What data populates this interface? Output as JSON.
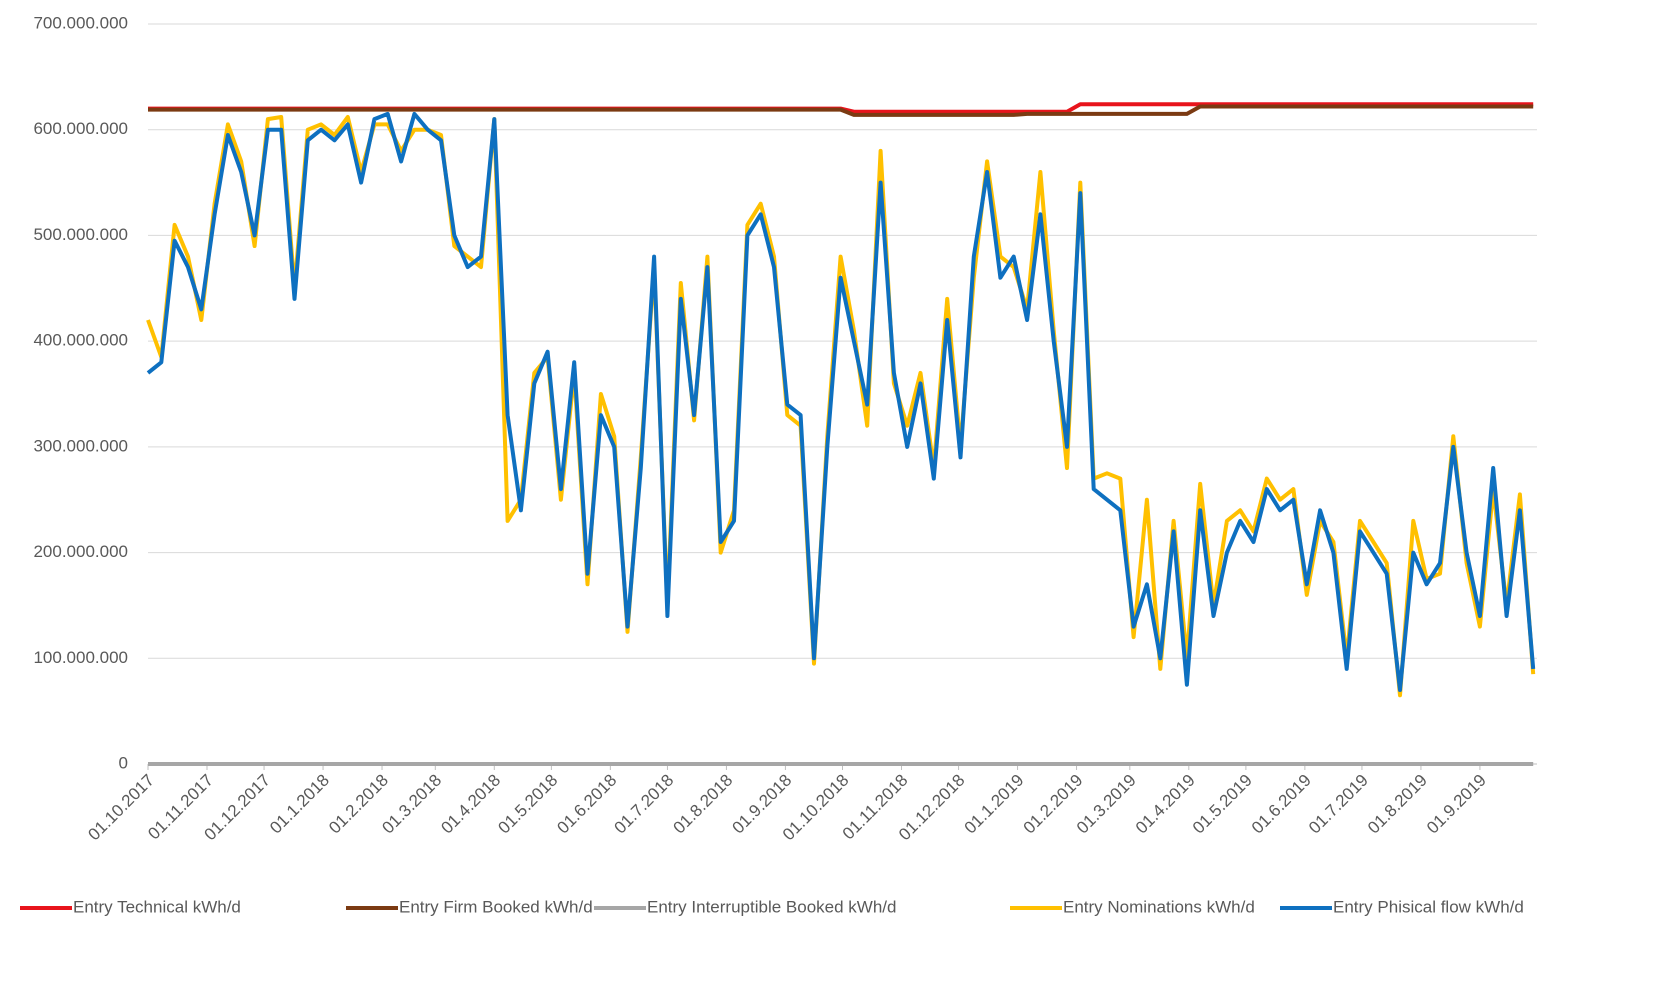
{
  "chart_data": {
    "type": "line",
    "x": [
      "01.10.2017",
      "08.10.2017",
      "15.10.2017",
      "22.10.2017",
      "29.10.2017",
      "05.11.2017",
      "12.11.2017",
      "19.11.2017",
      "26.11.2017",
      "03.12.2017",
      "10.12.2017",
      "17.12.2017",
      "24.12.2017",
      "31.12.2017",
      "07.1.2018",
      "14.1.2018",
      "21.1.2018",
      "28.1.2018",
      "04.2.2018",
      "11.2.2018",
      "18.2.2018",
      "25.2.2018",
      "04.3.2018",
      "11.3.2018",
      "18.3.2018",
      "25.3.2018",
      "01.4.2018",
      "08.4.2018",
      "15.4.2018",
      "22.4.2018",
      "29.4.2018",
      "06.5.2018",
      "13.5.2018",
      "20.5.2018",
      "27.5.2018",
      "03.6.2018",
      "10.6.2018",
      "17.6.2018",
      "24.6.2018",
      "01.7.2018",
      "08.7.2018",
      "15.7.2018",
      "22.7.2018",
      "29.7.2018",
      "05.8.2018",
      "12.8.2018",
      "19.8.2018",
      "26.8.2018",
      "02.9.2018",
      "09.9.2018",
      "16.9.2018",
      "23.9.2018",
      "30.9.2018",
      "07.10.2018",
      "14.10.2018",
      "21.10.2018",
      "28.10.2018",
      "04.11.2018",
      "11.11.2018",
      "18.11.2018",
      "25.11.2018",
      "02.12.2018",
      "09.12.2018",
      "16.12.2018",
      "23.12.2018",
      "30.12.2018",
      "06.1.2019",
      "13.1.2019",
      "20.1.2019",
      "27.1.2019",
      "03.2.2019",
      "10.2.2019",
      "17.2.2019",
      "24.2.2019",
      "03.3.2019",
      "10.3.2019",
      "17.3.2019",
      "24.3.2019",
      "31.3.2019",
      "07.4.2019",
      "14.4.2019",
      "21.4.2019",
      "28.4.2019",
      "05.5.2019",
      "12.5.2019",
      "19.5.2019",
      "26.5.2019",
      "02.6.2019",
      "09.6.2019",
      "16.6.2019",
      "23.6.2019",
      "30.6.2019",
      "07.7.2019",
      "14.7.2019",
      "21.7.2019",
      "28.7.2019",
      "04.8.2019",
      "11.8.2019",
      "18.8.2019",
      "25.8.2019",
      "01.9.2019",
      "08.9.2019",
      "15.9.2019",
      "22.9.2019",
      "29.9.2019"
    ],
    "series": [
      {
        "name": "Entry Technical kWh/d",
        "color": "#e8141c",
        "values": [
          620000000,
          620000000,
          620000000,
          620000000,
          620000000,
          620000000,
          620000000,
          620000000,
          620000000,
          620000000,
          620000000,
          620000000,
          620000000,
          620000000,
          620000000,
          620000000,
          620000000,
          620000000,
          620000000,
          620000000,
          620000000,
          620000000,
          620000000,
          620000000,
          620000000,
          620000000,
          620000000,
          620000000,
          620000000,
          620000000,
          620000000,
          620000000,
          620000000,
          620000000,
          620000000,
          620000000,
          620000000,
          620000000,
          620000000,
          620000000,
          620000000,
          620000000,
          620000000,
          620000000,
          620000000,
          620000000,
          620000000,
          620000000,
          620000000,
          620000000,
          620000000,
          620000000,
          620000000,
          617000000,
          617000000,
          617000000,
          617000000,
          617000000,
          617000000,
          617000000,
          617000000,
          617000000,
          617000000,
          617000000,
          617000000,
          617000000,
          617000000,
          617000000,
          617000000,
          617000000,
          624000000,
          624000000,
          624000000,
          624000000,
          624000000,
          624000000,
          624000000,
          624000000,
          624000000,
          624000000,
          624000000,
          624000000,
          624000000,
          624000000,
          624000000,
          624000000,
          624000000,
          624000000,
          624000000,
          624000000,
          624000000,
          624000000,
          624000000,
          624000000,
          624000000,
          624000000,
          624000000,
          624000000,
          624000000,
          624000000,
          624000000,
          624000000,
          624000000,
          624000000,
          624000000
        ]
      },
      {
        "name": "Entry Firm Booked kWh/d",
        "color": "#7b3a12",
        "values": [
          619000000,
          619000000,
          619000000,
          619000000,
          619000000,
          619000000,
          619000000,
          619000000,
          619000000,
          619000000,
          619000000,
          619000000,
          619000000,
          619000000,
          619000000,
          619000000,
          619000000,
          619000000,
          619000000,
          619000000,
          619000000,
          619000000,
          619000000,
          619000000,
          619000000,
          619000000,
          619000000,
          619000000,
          619000000,
          619000000,
          619000000,
          619000000,
          619000000,
          619000000,
          619000000,
          619000000,
          619000000,
          619000000,
          619000000,
          619000000,
          619000000,
          619000000,
          619000000,
          619000000,
          619000000,
          619000000,
          619000000,
          619000000,
          619000000,
          619000000,
          619000000,
          619000000,
          619000000,
          614000000,
          614000000,
          614000000,
          614000000,
          614000000,
          614000000,
          614000000,
          614000000,
          614000000,
          614000000,
          614000000,
          614000000,
          614000000,
          615000000,
          615000000,
          615000000,
          615000000,
          615000000,
          615000000,
          615000000,
          615000000,
          615000000,
          615000000,
          615000000,
          615000000,
          615000000,
          622000000,
          622000000,
          622000000,
          622000000,
          622000000,
          622000000,
          622000000,
          622000000,
          622000000,
          622000000,
          622000000,
          622000000,
          622000000,
          622000000,
          622000000,
          622000000,
          622000000,
          622000000,
          622000000,
          622000000,
          622000000,
          622000000,
          622000000,
          622000000,
          622000000,
          622000000
        ]
      },
      {
        "name": "Entry Interruptible Booked kWh/d",
        "color": "#a6a6a6",
        "values": [
          0,
          0,
          0,
          0,
          0,
          0,
          0,
          0,
          0,
          0,
          0,
          0,
          0,
          0,
          0,
          0,
          0,
          0,
          0,
          0,
          0,
          0,
          0,
          0,
          0,
          0,
          0,
          0,
          0,
          0,
          0,
          0,
          0,
          0,
          0,
          0,
          0,
          0,
          0,
          0,
          0,
          0,
          0,
          0,
          0,
          0,
          0,
          0,
          0,
          0,
          0,
          0,
          0,
          0,
          0,
          0,
          0,
          0,
          0,
          0,
          0,
          0,
          0,
          0,
          0,
          0,
          0,
          0,
          0,
          0,
          0,
          0,
          0,
          0,
          0,
          0,
          0,
          0,
          0,
          0,
          0,
          0,
          0,
          0,
          0,
          0,
          0,
          0,
          0,
          0,
          0,
          0,
          0,
          0,
          0,
          0,
          0,
          0,
          0,
          0,
          0,
          0,
          0,
          0,
          0
        ]
      },
      {
        "name": "Entry Nominations kWh/d",
        "color": "#ffc000",
        "values": [
          420000000,
          385000000,
          510000000,
          480000000,
          420000000,
          530000000,
          605000000,
          570000000,
          490000000,
          610000000,
          612000000,
          450000000,
          600000000,
          605000000,
          595000000,
          612000000,
          560000000,
          605000000,
          605000000,
          580000000,
          600000000,
          600000000,
          595000000,
          490000000,
          480000000,
          470000000,
          610000000,
          230000000,
          250000000,
          370000000,
          385000000,
          250000000,
          370000000,
          170000000,
          350000000,
          310000000,
          125000000,
          290000000,
          470000000,
          150000000,
          455000000,
          325000000,
          480000000,
          200000000,
          240000000,
          510000000,
          530000000,
          480000000,
          330000000,
          320000000,
          95000000,
          310000000,
          480000000,
          410000000,
          320000000,
          580000000,
          360000000,
          320000000,
          370000000,
          280000000,
          440000000,
          300000000,
          460000000,
          570000000,
          480000000,
          470000000,
          430000000,
          560000000,
          410000000,
          280000000,
          550000000,
          270000000,
          275000000,
          270000000,
          120000000,
          250000000,
          90000000,
          230000000,
          100000000,
          265000000,
          150000000,
          230000000,
          240000000,
          220000000,
          270000000,
          250000000,
          260000000,
          160000000,
          230000000,
          210000000,
          100000000,
          230000000,
          210000000,
          190000000,
          65000000,
          230000000,
          175000000,
          180000000,
          310000000,
          190000000,
          130000000,
          260000000,
          150000000,
          255000000,
          85000000
        ]
      },
      {
        "name": "Entry Phisical flow kWh/d",
        "color": "#0e70c0",
        "values": [
          370000000,
          380000000,
          495000000,
          470000000,
          430000000,
          520000000,
          595000000,
          560000000,
          500000000,
          600000000,
          600000000,
          440000000,
          590000000,
          600000000,
          590000000,
          605000000,
          550000000,
          610000000,
          615000000,
          570000000,
          615000000,
          600000000,
          590000000,
          500000000,
          470000000,
          480000000,
          610000000,
          330000000,
          240000000,
          360000000,
          390000000,
          260000000,
          380000000,
          180000000,
          330000000,
          300000000,
          130000000,
          280000000,
          480000000,
          140000000,
          440000000,
          330000000,
          470000000,
          210000000,
          230000000,
          500000000,
          520000000,
          470000000,
          340000000,
          330000000,
          100000000,
          300000000,
          460000000,
          400000000,
          340000000,
          550000000,
          370000000,
          300000000,
          360000000,
          270000000,
          420000000,
          290000000,
          480000000,
          560000000,
          460000000,
          480000000,
          420000000,
          520000000,
          400000000,
          300000000,
          540000000,
          260000000,
          250000000,
          240000000,
          130000000,
          170000000,
          100000000,
          220000000,
          75000000,
          240000000,
          140000000,
          200000000,
          230000000,
          210000000,
          260000000,
          240000000,
          250000000,
          170000000,
          240000000,
          200000000,
          90000000,
          220000000,
          200000000,
          180000000,
          70000000,
          200000000,
          170000000,
          190000000,
          300000000,
          200000000,
          140000000,
          280000000,
          140000000,
          240000000,
          90000000
        ]
      }
    ],
    "xlim": [
      "01.10.2017",
      "01.10.2019"
    ],
    "xticks": [
      "01.10.2017",
      "01.11.2017",
      "01.12.2017",
      "01.1.2018",
      "01.2.2018",
      "01.3.2018",
      "01.4.2018",
      "01.5.2018",
      "01.6.2018",
      "01.7.2018",
      "01.8.2018",
      "01.9.2018",
      "01.10.2018",
      "01.11.2018",
      "01.12.2018",
      "01.1.2019",
      "01.2.2019",
      "01.3.2019",
      "01.4.2019",
      "01.5.2019",
      "01.6.2019",
      "01.7.2019",
      "01.8.2019",
      "01.9.2019"
    ],
    "ylim": [
      0,
      700000000
    ],
    "yticks": [
      0,
      {
        "value": 100000000,
        "label": "100.000.000"
      },
      {
        "value": 200000000,
        "label": "200.000.000"
      },
      {
        "value": 300000000,
        "label": "300.000.000"
      },
      {
        "value": 400000000,
        "label": "400.000.000"
      },
      {
        "value": 500000000,
        "label": "500.000.000"
      },
      {
        "value": 600000000,
        "label": "600.000.000"
      },
      {
        "value": 700000000,
        "label": "700.000.000"
      }
    ],
    "grid": true,
    "legend": "bottom"
  }
}
